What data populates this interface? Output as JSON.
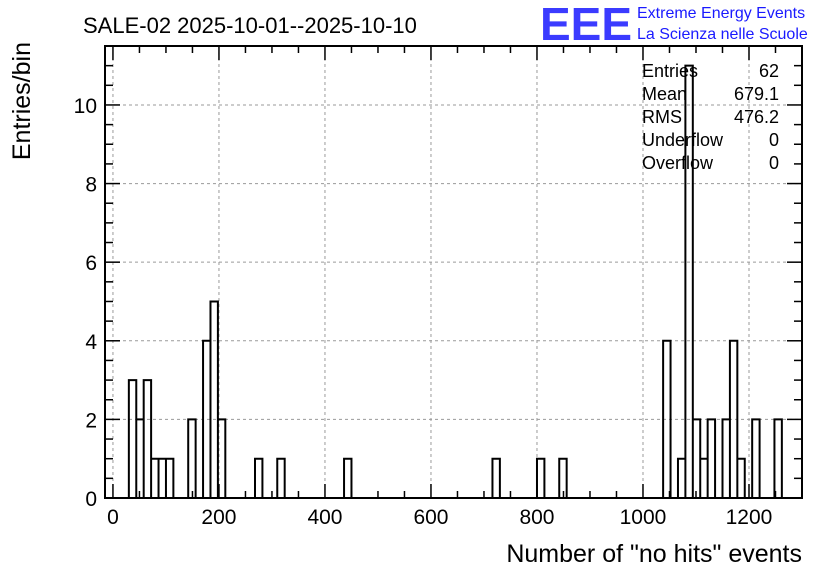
{
  "chart_data": {
    "type": "histogram",
    "title": "SALE-02 2025-10-01--2025-10-10",
    "xlabel": "Number of \"no hits\" events",
    "ylabel": "Entries/bin",
    "xlim": [
      -15,
      1300
    ],
    "ylim": [
      0,
      11.5
    ],
    "bin_width": 14,
    "xticks": [
      0,
      200,
      400,
      600,
      800,
      1000,
      1200
    ],
    "yticks": [
      0,
      2,
      4,
      6,
      8,
      10
    ],
    "grid": true,
    "bins": [
      {
        "x0": 30,
        "count": 3
      },
      {
        "x0": 44,
        "count": 2
      },
      {
        "x0": 58,
        "count": 3
      },
      {
        "x0": 72,
        "count": 1
      },
      {
        "x0": 86,
        "count": 1
      },
      {
        "x0": 100,
        "count": 1
      },
      {
        "x0": 142,
        "count": 2
      },
      {
        "x0": 170,
        "count": 4
      },
      {
        "x0": 184,
        "count": 5
      },
      {
        "x0": 198,
        "count": 2
      },
      {
        "x0": 268,
        "count": 1
      },
      {
        "x0": 310,
        "count": 1
      },
      {
        "x0": 436,
        "count": 1
      },
      {
        "x0": 716,
        "count": 1
      },
      {
        "x0": 800,
        "count": 1
      },
      {
        "x0": 842,
        "count": 1
      },
      {
        "x0": 1038,
        "count": 4
      },
      {
        "x0": 1066,
        "count": 1
      },
      {
        "x0": 1080,
        "count": 11
      },
      {
        "x0": 1094,
        "count": 2
      },
      {
        "x0": 1108,
        "count": 1
      },
      {
        "x0": 1122,
        "count": 2
      },
      {
        "x0": 1150,
        "count": 2
      },
      {
        "x0": 1164,
        "count": 4
      },
      {
        "x0": 1178,
        "count": 1
      },
      {
        "x0": 1206,
        "count": 2
      },
      {
        "x0": 1248,
        "count": 2
      }
    ],
    "stats": [
      {
        "label": "Entries",
        "value": "62"
      },
      {
        "label": "Mean",
        "value": "679.1"
      },
      {
        "label": "RMS",
        "value": "476.2"
      },
      {
        "label": "Underflow",
        "value": "0"
      },
      {
        "label": "Overflow",
        "value": "0"
      }
    ]
  },
  "logo": {
    "mark": "EEE",
    "line1": "Extreme Energy Events",
    "line2": "La Scienza nelle Scuole"
  }
}
